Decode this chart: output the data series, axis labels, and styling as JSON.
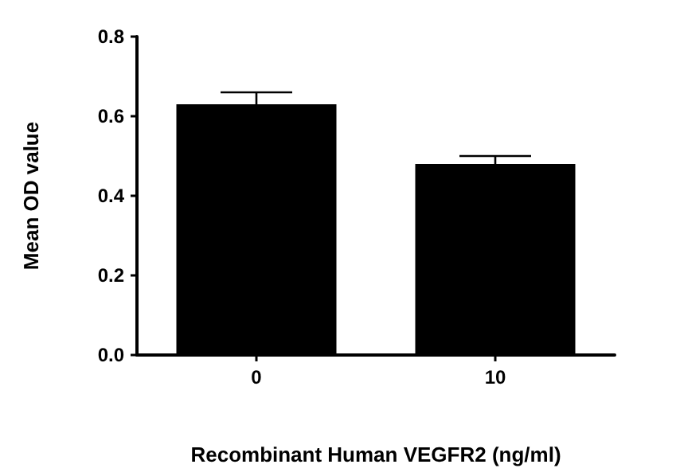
{
  "chart_data": {
    "type": "bar",
    "xlabel": "Recombinant Human VEGFR2 (ng/ml)",
    "ylabel": "Mean OD value",
    "categories": [
      "0",
      "10"
    ],
    "values": [
      0.63,
      0.48
    ],
    "errors": [
      0.03,
      0.02
    ],
    "color": "#000000",
    "ylim": [
      0,
      0.8
    ],
    "yticks": [
      {
        "value": 0,
        "label": "0.0"
      },
      0.2,
      0.4,
      0.6,
      0.8
    ],
    "grid": false
  }
}
